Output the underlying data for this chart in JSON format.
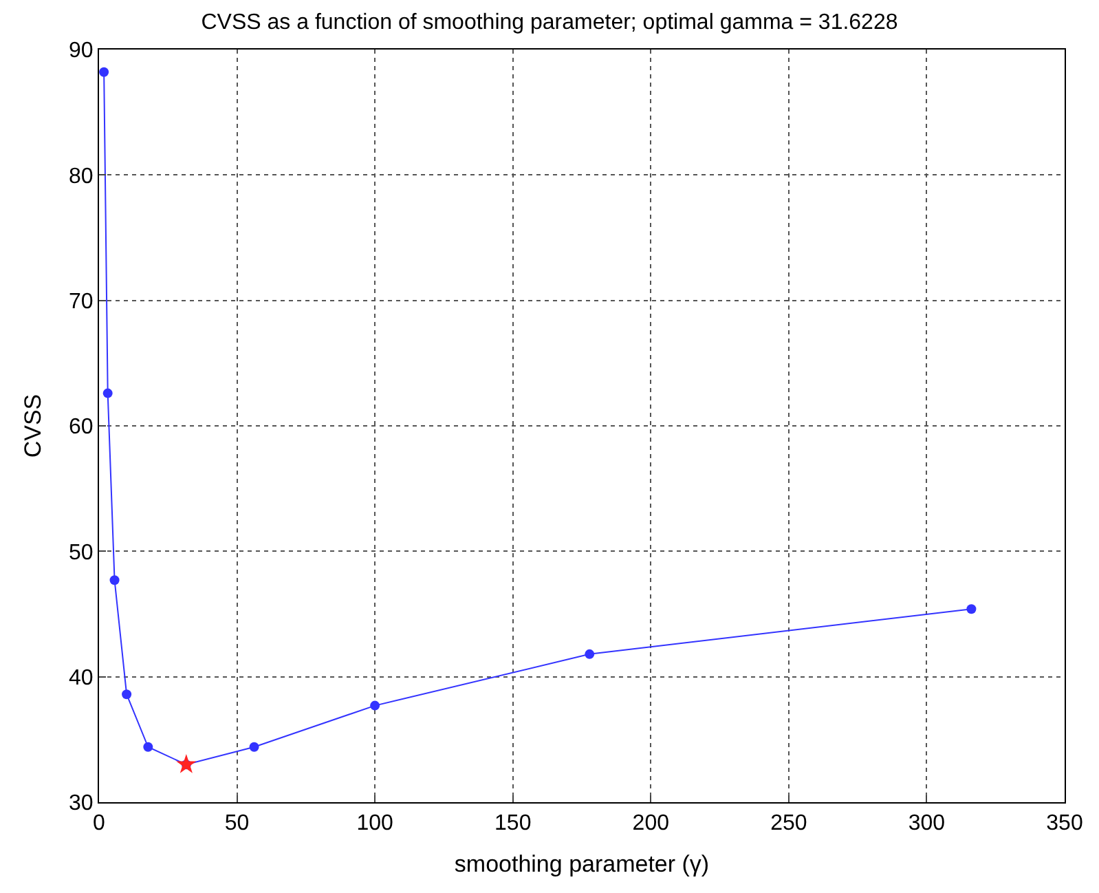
{
  "chart_data": {
    "type": "line",
    "title": "CVSS as a function of smoothing parameter; optimal gamma = 31.6228",
    "xlabel": "smoothing parameter (γ)",
    "ylabel": "CVSS",
    "xlim": [
      0,
      350
    ],
    "xticks": [
      0,
      50,
      100,
      150,
      200,
      250,
      300,
      350
    ],
    "ylim": [
      30,
      90
    ],
    "yticks": [
      30,
      40,
      50,
      60,
      70,
      80,
      90
    ],
    "grid": true,
    "series": [
      {
        "color": "#3333ff",
        "marker": "circle",
        "x": [
          1.778,
          3.162,
          5.623,
          10,
          17.78,
          31.62,
          56.23,
          100,
          177.8,
          316.2
        ],
        "values": [
          88.2,
          62.6,
          47.7,
          38.6,
          34.4,
          33.0,
          34.4,
          37.7,
          41.8,
          45.4
        ]
      },
      {
        "type": "scatter",
        "color": "#ff2222",
        "marker": "star",
        "x": [
          31.62
        ],
        "values": [
          33.0
        ]
      }
    ]
  }
}
